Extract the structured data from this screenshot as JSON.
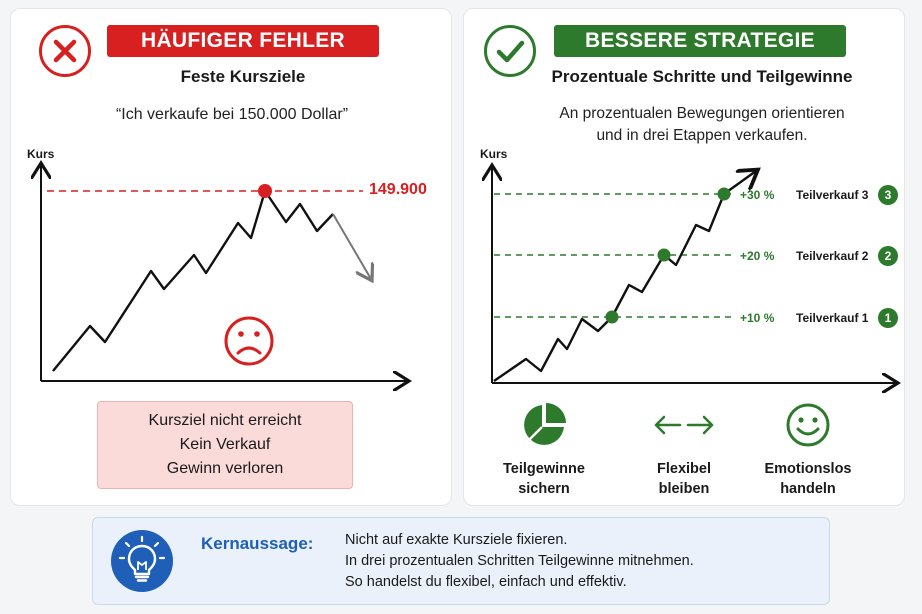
{
  "left": {
    "banner": "HÄUFIGER FEHLER",
    "subtitle": "Feste Kursziele",
    "quote": "“Ich verkaufe bei 150.000 Dollar”",
    "axis_label": "Kurs",
    "target_label": "149.900",
    "box_lines": [
      "Kursziel nicht erreicht",
      "Kein Verkauf",
      "Gewinn verloren"
    ],
    "colors": {
      "accent": "#d7201f",
      "box_bg": "#fbdada"
    },
    "icons": [
      "x-mark-icon",
      "sad-face-icon"
    ]
  },
  "right": {
    "banner": "BESSERE STRATEGIE",
    "subtitle": "Prozentuale Schritte und Teilgewinne",
    "desc_lines": [
      "An prozentualen Bewegungen orientieren",
      "und in drei Etappen verkaufen."
    ],
    "axis_label": "Kurs",
    "levels": [
      {
        "pct": "+30 %",
        "name": "Teilverkauf 3",
        "num": "3"
      },
      {
        "pct": "+20 %",
        "name": "Teilverkauf 2",
        "num": "2"
      },
      {
        "pct": "+10 %",
        "name": "Teilverkauf 1",
        "num": "1"
      }
    ],
    "strategies": [
      {
        "icon": "pie-chart-icon",
        "line1": "Teilgewinne",
        "line2": "sichern"
      },
      {
        "icon": "arrows-left-right-icon",
        "line1": "Flexibel",
        "line2": "bleiben"
      },
      {
        "icon": "smiley-icon",
        "line1": "Emotionslos",
        "line2": "handeln"
      }
    ],
    "colors": {
      "accent": "#2d7a2d"
    },
    "icons": [
      "check-mark-icon"
    ]
  },
  "key": {
    "title": "Kernaussage:",
    "lines": [
      "Nicht auf exakte Kursziele fixieren.",
      "In drei prozentualen Schritten Teilgewinne mitnehmen.",
      "So handelst du flexibel, einfach und effektiv."
    ],
    "icon": "lightbulb-icon",
    "color": "#1f5fb8"
  }
}
